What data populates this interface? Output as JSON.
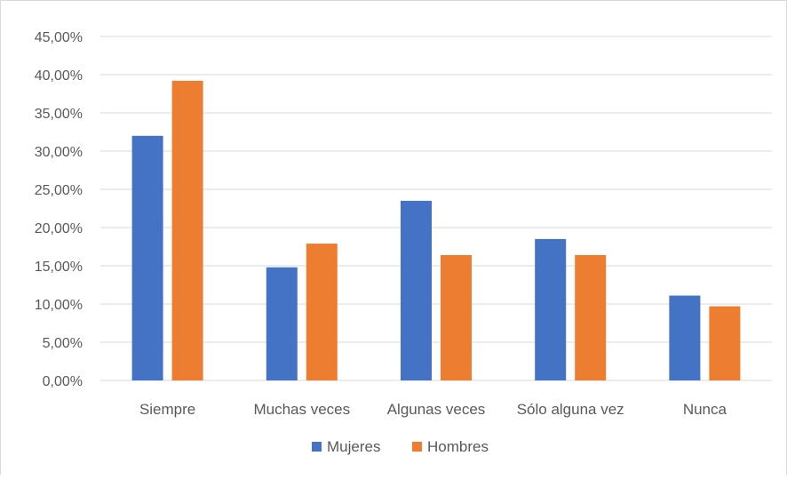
{
  "chart_data": {
    "type": "bar",
    "categories": [
      "Siempre",
      "Muchas veces",
      "Algunas veces",
      "Sólo alguna vez",
      "Nunca"
    ],
    "series": [
      {
        "name": "Mujeres",
        "color": "#4472c4",
        "values": [
          32.0,
          14.8,
          23.5,
          18.5,
          11.1
        ]
      },
      {
        "name": "Hombres",
        "color": "#ed7d31",
        "values": [
          39.2,
          17.9,
          16.4,
          16.4,
          9.7
        ]
      }
    ],
    "ylim": [
      0,
      45
    ],
    "yticks": [
      "0,00%",
      "5,00%",
      "10,00%",
      "15,00%",
      "20,00%",
      "25,00%",
      "30,00%",
      "35,00%",
      "40,00%",
      "45,00%"
    ],
    "grid": true,
    "legend_position": "bottom",
    "title": "",
    "xlabel": "",
    "ylabel": ""
  }
}
